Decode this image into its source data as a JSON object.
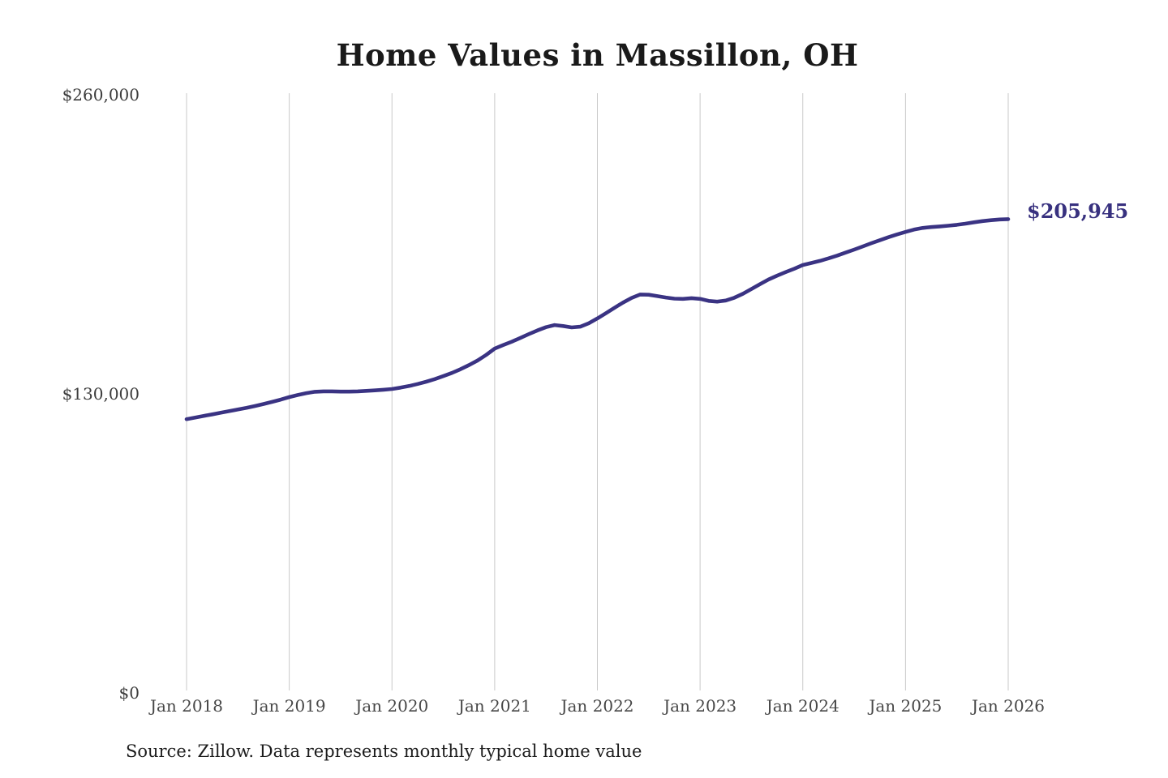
{
  "title": "Home Values in Massillon, OH",
  "annotations": {
    "end_value_label": "$205,945"
  },
  "footer": {
    "source_note": "Source: Zillow. Data represents monthly typical home value"
  },
  "colors": {
    "line": "#3a3383",
    "grid": "#c9c9c9",
    "title_text": "#1a1a1a",
    "axis_text": "#3d3d3d",
    "end_label_text": "#38317f"
  },
  "chart_data": {
    "type": "line",
    "title": "Home Values in Massillon, OH",
    "xlabel": "",
    "ylabel": "",
    "ylim": [
      0,
      260000
    ],
    "y_ticks": [
      {
        "label": "$0",
        "value": 0
      },
      {
        "label": "$130,000",
        "value": 130000
      },
      {
        "label": "$260,000",
        "value": 260000
      }
    ],
    "x_tick_labels": [
      "Jan 2018",
      "Jan 2019",
      "Jan 2020",
      "Jan 2021",
      "Jan 2022",
      "Jan 2023",
      "Jan 2024",
      "Jan 2025",
      "Jan 2026"
    ],
    "x_range": [
      "Jan 2018",
      "Jan 2026"
    ],
    "frequency": "monthly",
    "grid": "vertical-only",
    "legend": "none",
    "end_annotation": {
      "label": "$205,945",
      "value": 205945
    },
    "series": [
      {
        "name": "Typical home value",
        "values": [
          119000,
          119700,
          120400,
          121100,
          121800,
          122500,
          123200,
          123900,
          124700,
          125600,
          126500,
          127500,
          128600,
          129500,
          130300,
          130900,
          131100,
          131100,
          131000,
          131000,
          131100,
          131300,
          131500,
          131800,
          132100,
          132700,
          133400,
          134300,
          135300,
          136400,
          137700,
          139100,
          140700,
          142500,
          144500,
          146900,
          149700,
          151200,
          152700,
          154300,
          156000,
          157600,
          159000,
          159900,
          159500,
          158900,
          159200,
          160700,
          162800,
          165100,
          167400,
          169700,
          171700,
          173200,
          173100,
          172500,
          171900,
          171400,
          171300,
          171600,
          171300,
          170400,
          170100,
          170600,
          171800,
          173500,
          175600,
          177700,
          179700,
          181400,
          182900,
          184400,
          186000,
          186900,
          187800,
          188900,
          190100,
          191400,
          192700,
          194100,
          195500,
          196800,
          198100,
          199300,
          200400,
          201400,
          202100,
          202500,
          202800,
          203100,
          203500,
          204000,
          204600,
          205100,
          205500,
          205800,
          205945
        ]
      }
    ]
  }
}
